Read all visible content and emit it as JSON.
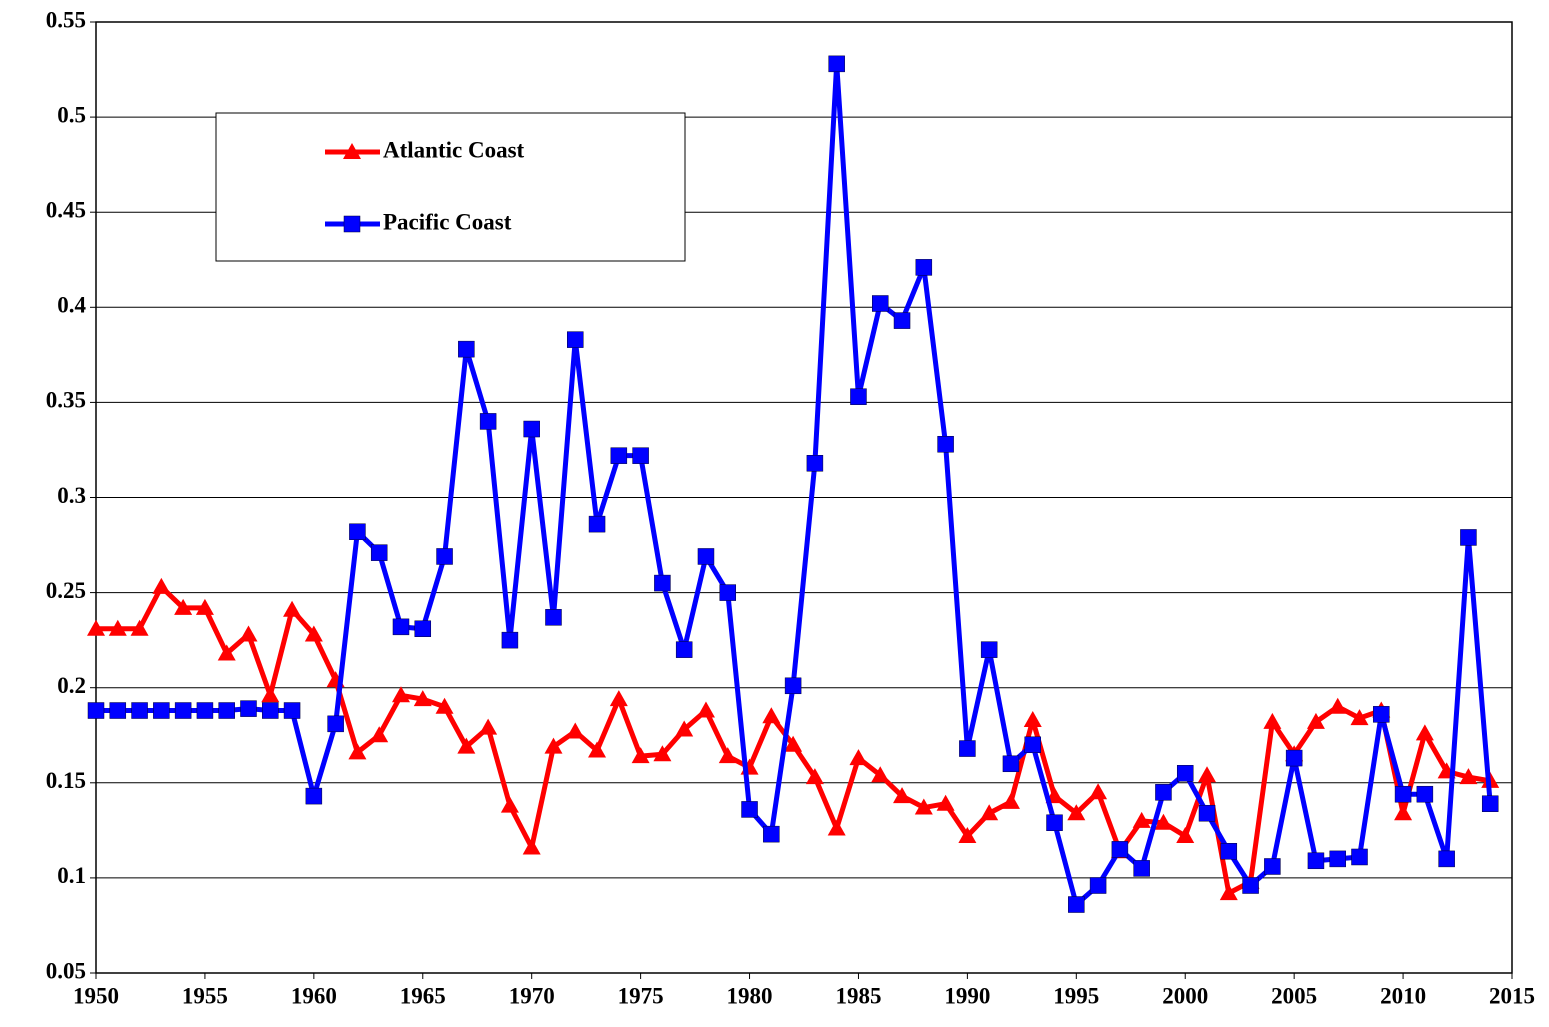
{
  "chart_data": {
    "type": "line",
    "x": [
      1950,
      1951,
      1952,
      1953,
      1954,
      1955,
      1956,
      1957,
      1958,
      1959,
      1960,
      1961,
      1962,
      1963,
      1964,
      1965,
      1966,
      1967,
      1968,
      1969,
      1970,
      1971,
      1972,
      1973,
      1974,
      1975,
      1976,
      1977,
      1978,
      1979,
      1980,
      1981,
      1982,
      1983,
      1984,
      1985,
      1986,
      1987,
      1988,
      1989,
      1990,
      1991,
      1992,
      1993,
      1994,
      1995,
      1996,
      1997,
      1998,
      1999,
      2000,
      2001,
      2002,
      2003,
      2004,
      2005,
      2006,
      2007,
      2008,
      2009,
      2010,
      2011,
      2012,
      2013,
      2014
    ],
    "series": [
      {
        "name": "Atlantic Coast",
        "color": "#ff0000",
        "marker": "triangle",
        "values": [
          0.231,
          0.231,
          0.231,
          0.253,
          0.242,
          0.242,
          0.218,
          0.228,
          0.196,
          0.241,
          0.228,
          0.204,
          0.166,
          0.175,
          0.196,
          0.194,
          0.19,
          0.169,
          0.179,
          0.138,
          0.116,
          0.169,
          0.177,
          0.167,
          0.194,
          0.164,
          0.165,
          0.178,
          0.188,
          0.164,
          0.158,
          0.185,
          0.17,
          0.153,
          0.126,
          0.163,
          0.154,
          0.143,
          0.137,
          0.139,
          0.122,
          0.134,
          0.14,
          0.183,
          0.143,
          0.134,
          0.145,
          0.114,
          0.13,
          0.129,
          0.122,
          0.154,
          0.092,
          0.098,
          0.182,
          0.165,
          0.182,
          0.19,
          0.184,
          0.188,
          0.134,
          0.176,
          0.156,
          0.153,
          0.151
        ]
      },
      {
        "name": "Pacific Coast",
        "color": "#0000ff",
        "marker": "square",
        "values": [
          0.188,
          0.188,
          0.188,
          0.188,
          0.188,
          0.188,
          0.188,
          0.189,
          0.188,
          0.188,
          0.143,
          0.181,
          0.282,
          0.271,
          0.232,
          0.231,
          0.269,
          0.378,
          0.34,
          0.225,
          0.336,
          0.237,
          0.383,
          0.286,
          0.322,
          0.322,
          0.255,
          0.22,
          0.269,
          0.25,
          0.136,
          0.123,
          0.201,
          0.318,
          0.528,
          0.353,
          0.402,
          0.393,
          0.421,
          0.328,
          0.168,
          0.22,
          0.16,
          0.17,
          0.129,
          0.086,
          0.096,
          0.115,
          0.105,
          0.145,
          0.155,
          0.134,
          0.114,
          0.096,
          0.106,
          0.163,
          0.109,
          0.11,
          0.111,
          0.186,
          0.144,
          0.144,
          0.11,
          0.279,
          0.139
        ]
      }
    ],
    "xlim": [
      1950,
      2015
    ],
    "xticks": [
      1950,
      1955,
      1960,
      1965,
      1970,
      1975,
      1980,
      1985,
      1990,
      1995,
      2000,
      2005,
      2010,
      2015
    ],
    "ylim": [
      0.05,
      0.55
    ],
    "yticks": [
      0.05,
      0.1,
      0.15,
      0.2,
      0.25,
      0.3,
      0.35,
      0.4,
      0.45,
      0.5,
      0.55
    ],
    "grid": true,
    "legend": "upper left"
  }
}
